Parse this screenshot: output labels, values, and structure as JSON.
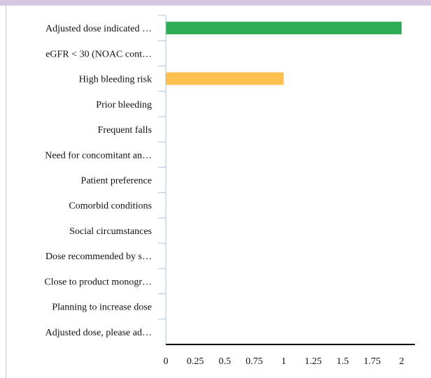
{
  "chart_data": {
    "type": "bar",
    "orientation": "horizontal",
    "categories": [
      "Adjusted dose indicated …",
      "eGFR < 30 (NOAC cont…",
      "High bleeding risk",
      "Prior bleeding",
      "Frequent falls",
      "Need for concomitant an…",
      "Patient preference",
      "Comorbid conditions",
      "Social circumstances",
      "Dose recommended by s…",
      "Close to product monogr…",
      "Planning to increase dose",
      "Adjusted dose, please ad…"
    ],
    "values": [
      2,
      0,
      1,
      0,
      0,
      0,
      0,
      0,
      0,
      0,
      0,
      0,
      0
    ],
    "bar_colors": [
      "#2eab55",
      "#2eab55",
      "#fcc14f",
      "#2eab55",
      "#2eab55",
      "#2eab55",
      "#2eab55",
      "#2eab55",
      "#2eab55",
      "#2eab55",
      "#2eab55",
      "#2eab55",
      "#2eab55"
    ],
    "xlim": [
      0,
      2
    ],
    "x_ticks": [
      0,
      0.25,
      0.5,
      0.75,
      1,
      1.25,
      1.5,
      1.75,
      2
    ],
    "x_tick_labels": [
      "0",
      "0.25",
      "0.5",
      "0.75",
      "1",
      "1.25",
      "1.5",
      "1.75",
      "2"
    ],
    "grid": false,
    "title": "",
    "xlabel": "",
    "ylabel": ""
  },
  "colors": {
    "header_band": "#d7c7e3",
    "axis": "#000000",
    "category_axis": "#aac4dc"
  }
}
